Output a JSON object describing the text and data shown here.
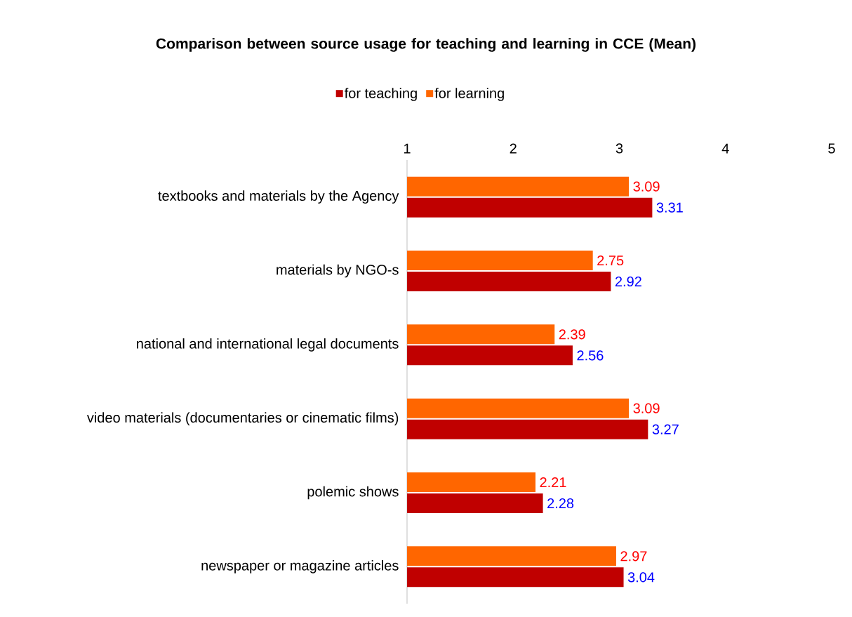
{
  "chart_data": {
    "type": "bar",
    "orientation": "horizontal",
    "title": "Comparison between source usage for teaching and learning in CCE (Mean)",
    "categories": [
      "textbooks and materials by the Agency",
      "materials by NGO-s",
      "national and international legal documents",
      "video materials (documentaries or cinematic films)",
      "polemic shows",
      "newspaper or magazine articles"
    ],
    "series": [
      {
        "name": "for teaching",
        "color": "#c00000",
        "values": [
          3.31,
          2.92,
          2.56,
          3.27,
          2.28,
          3.04
        ]
      },
      {
        "name": "for learning",
        "color": "#ff6600",
        "values": [
          3.09,
          2.75,
          2.39,
          3.09,
          2.21,
          2.97
        ]
      }
    ],
    "xlim": [
      1,
      5
    ],
    "xticks": [
      1,
      2,
      3,
      4,
      5
    ],
    "data_labels": true,
    "legend": "top",
    "grid": false
  }
}
